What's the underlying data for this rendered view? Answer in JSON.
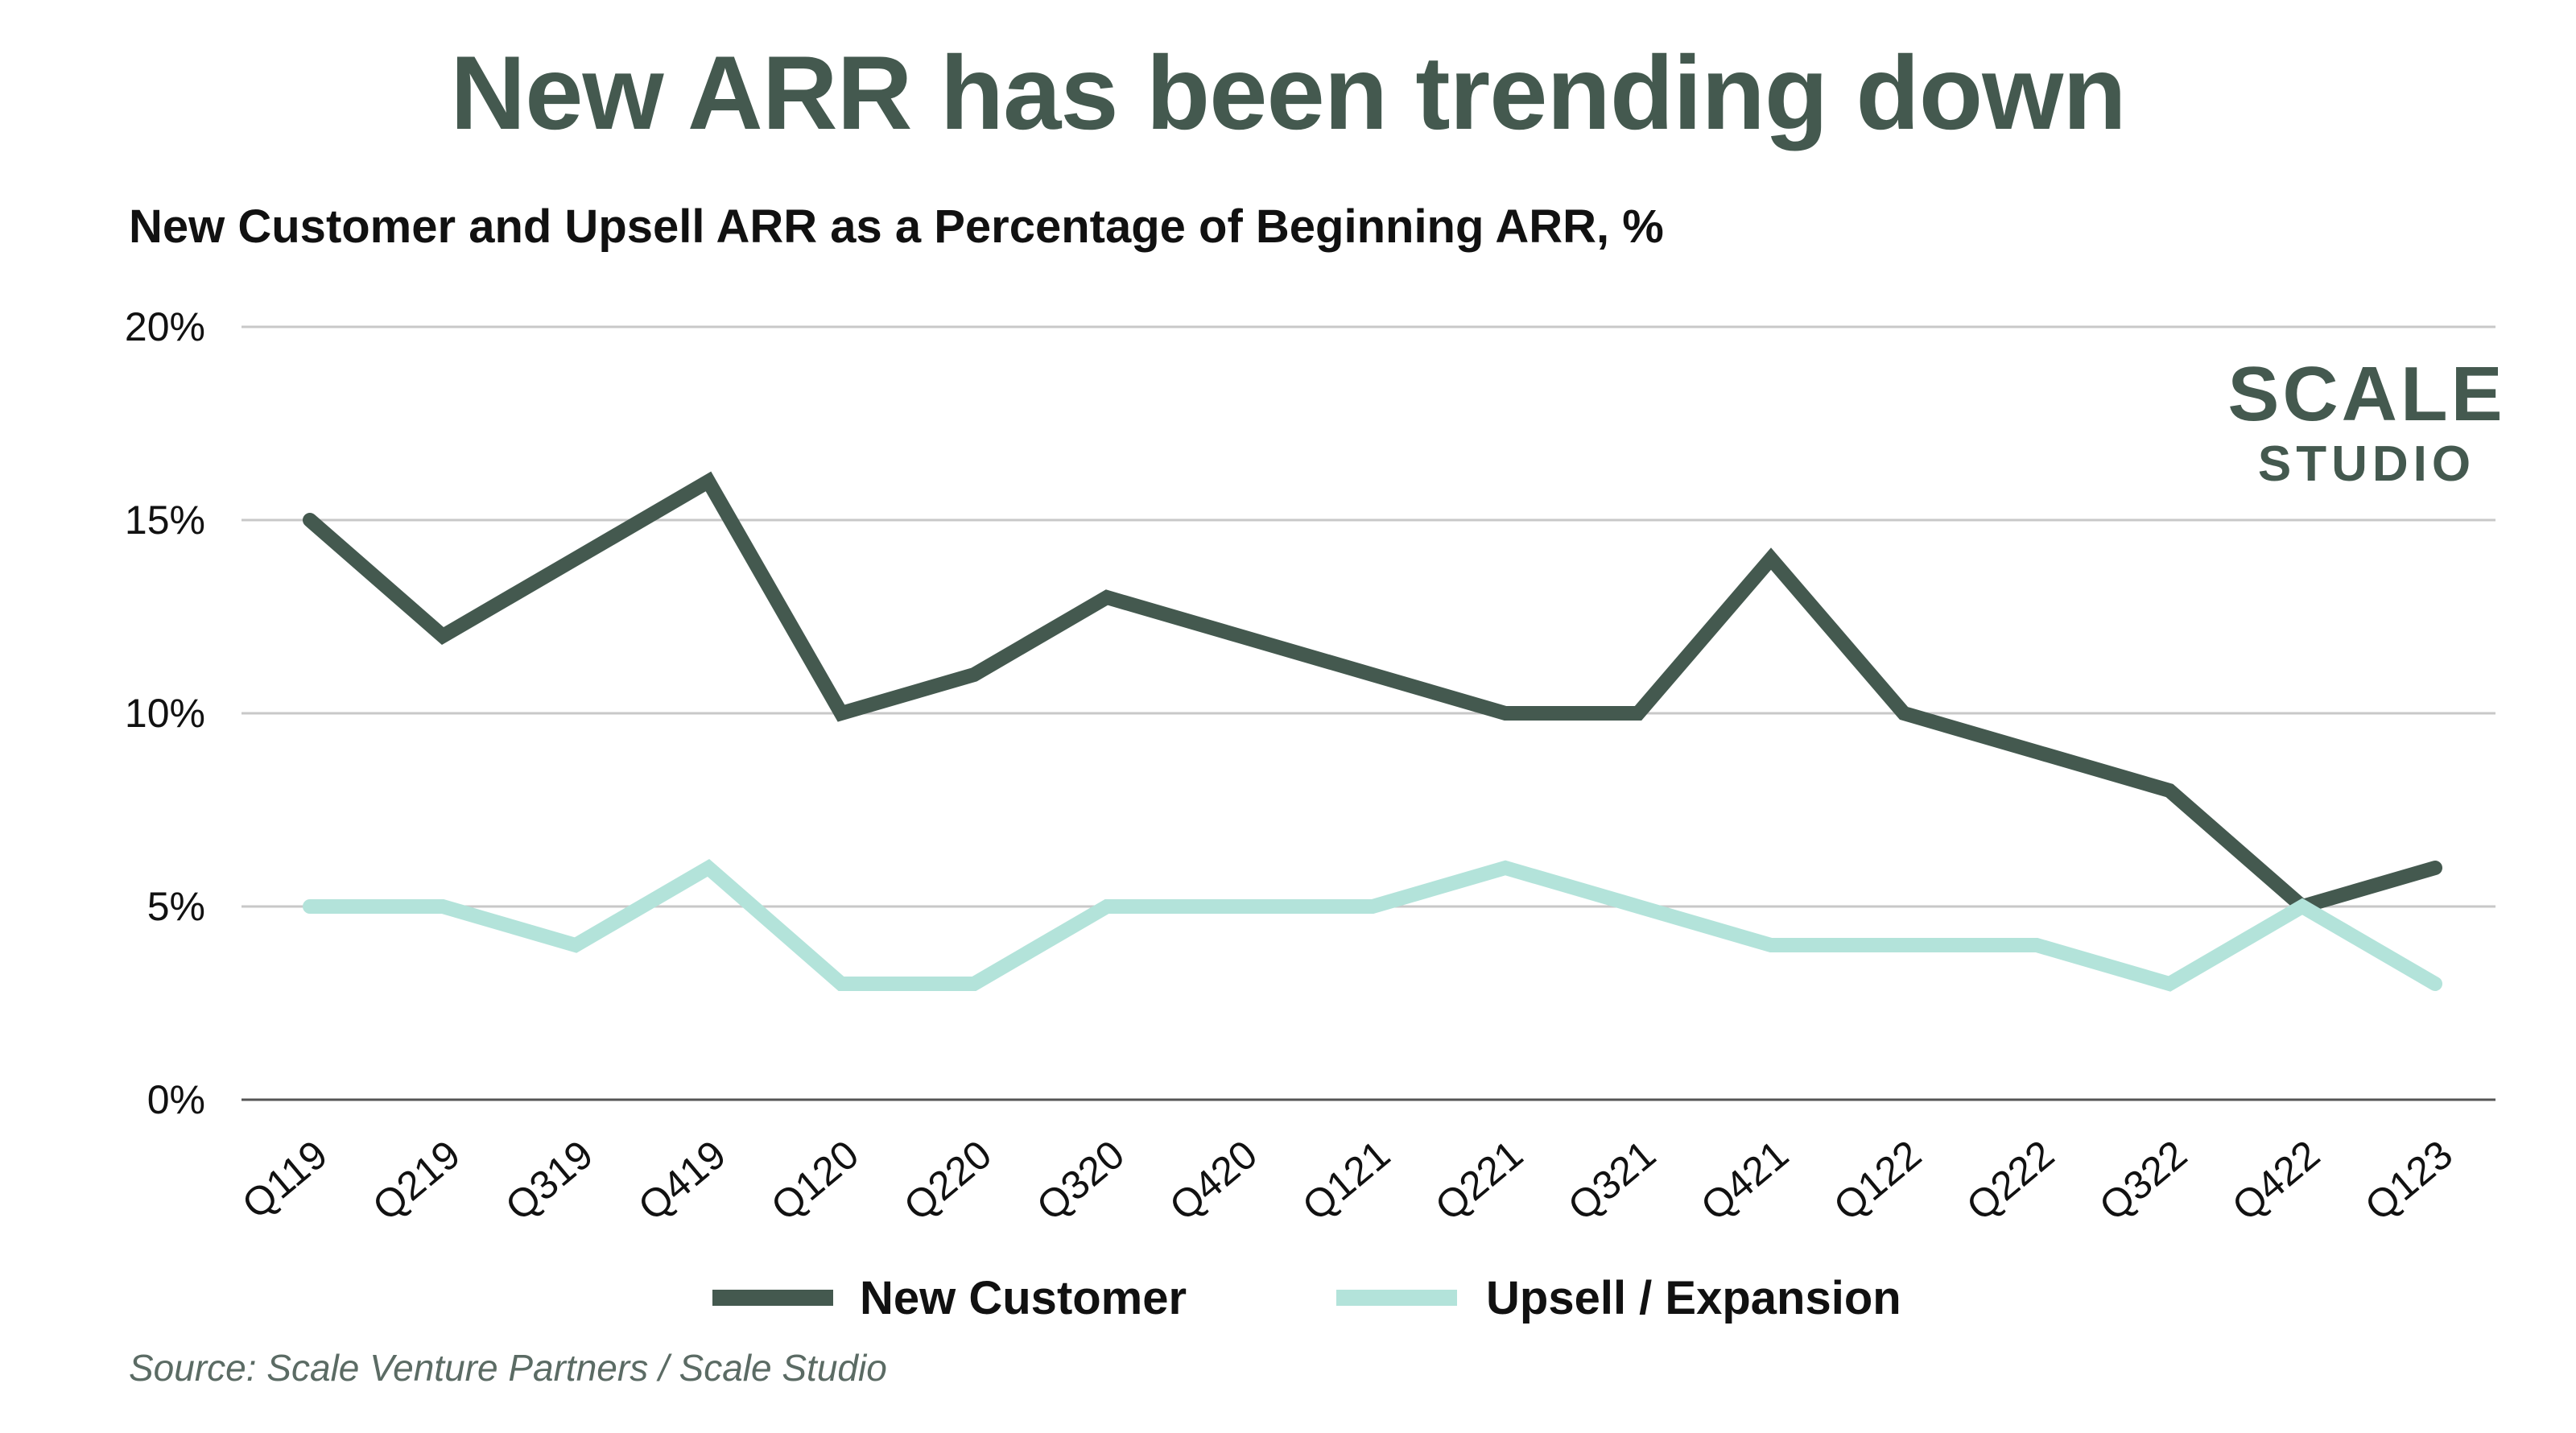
{
  "title": "New ARR has been trending down",
  "subtitle": "New Customer and Upsell ARR as a Percentage of Beginning ARR, %",
  "source": "Source: Scale Venture Partners / Scale Studio",
  "logo": {
    "line1": "SCALE",
    "line2": "STUDIO"
  },
  "colors": {
    "title": "#44594f",
    "new_customer": "#44594f",
    "upsell": "#b3e3da",
    "grid": "#c8c8c8",
    "axis": "#555555"
  },
  "chart_data": {
    "type": "line",
    "categories": [
      "Q119",
      "Q219",
      "Q319",
      "Q419",
      "Q120",
      "Q220",
      "Q320",
      "Q420",
      "Q121",
      "Q221",
      "Q321",
      "Q421",
      "Q122",
      "Q222",
      "Q322",
      "Q422",
      "Q123"
    ],
    "series": [
      {
        "name": "New Customer",
        "color": "#44594f",
        "values": [
          15,
          12,
          14,
          16,
          10,
          11,
          13,
          12,
          11,
          10,
          10,
          14,
          10,
          9,
          8,
          5,
          6
        ]
      },
      {
        "name": "Upsell / Expansion",
        "color": "#b3e3da",
        "values": [
          5,
          5,
          4,
          6,
          3,
          3,
          5,
          5,
          5,
          6,
          5,
          4,
          4,
          4,
          3,
          5,
          3
        ]
      }
    ],
    "yticks": [
      "0%",
      "5%",
      "10%",
      "15%",
      "20%"
    ],
    "ylim": [
      0,
      20
    ],
    "grid": true,
    "legend_position": "bottom-center"
  }
}
